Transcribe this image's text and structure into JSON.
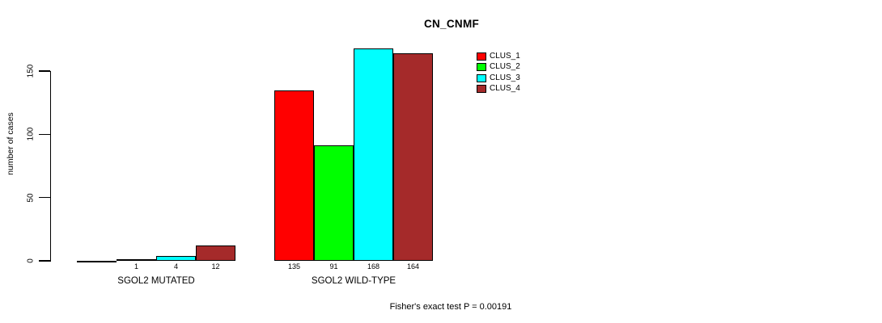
{
  "chart_data": {
    "type": "bar",
    "title": "CN_CNMF",
    "ylabel": "number of cases",
    "xlabel": "",
    "categories": [
      "SGOL2 MUTATED",
      "SGOL2 WILD-TYPE"
    ],
    "series": [
      {
        "name": "CLUS_1",
        "color": "#FF0000",
        "values": [
          0,
          135
        ]
      },
      {
        "name": "CLUS_2",
        "color": "#00FF00",
        "values": [
          1,
          91
        ]
      },
      {
        "name": "CLUS_3",
        "color": "#00FFFF",
        "values": [
          4,
          168
        ]
      },
      {
        "name": "CLUS_4",
        "color": "#A52A2A",
        "values": [
          12,
          164
        ]
      }
    ],
    "bar_labels": [
      [
        "",
        "1",
        "4",
        "12"
      ],
      [
        "135",
        "91",
        "168",
        "164"
      ]
    ],
    "yticks": [
      0,
      50,
      100,
      150
    ],
    "ylim": [
      0,
      170
    ],
    "grid": false,
    "legend": {
      "position": "top-right",
      "entries": [
        "CLUS_1",
        "CLUS_2",
        "CLUS_3",
        "CLUS_4"
      ]
    },
    "annotation": "Fisher's exact test P = 0.00191"
  }
}
